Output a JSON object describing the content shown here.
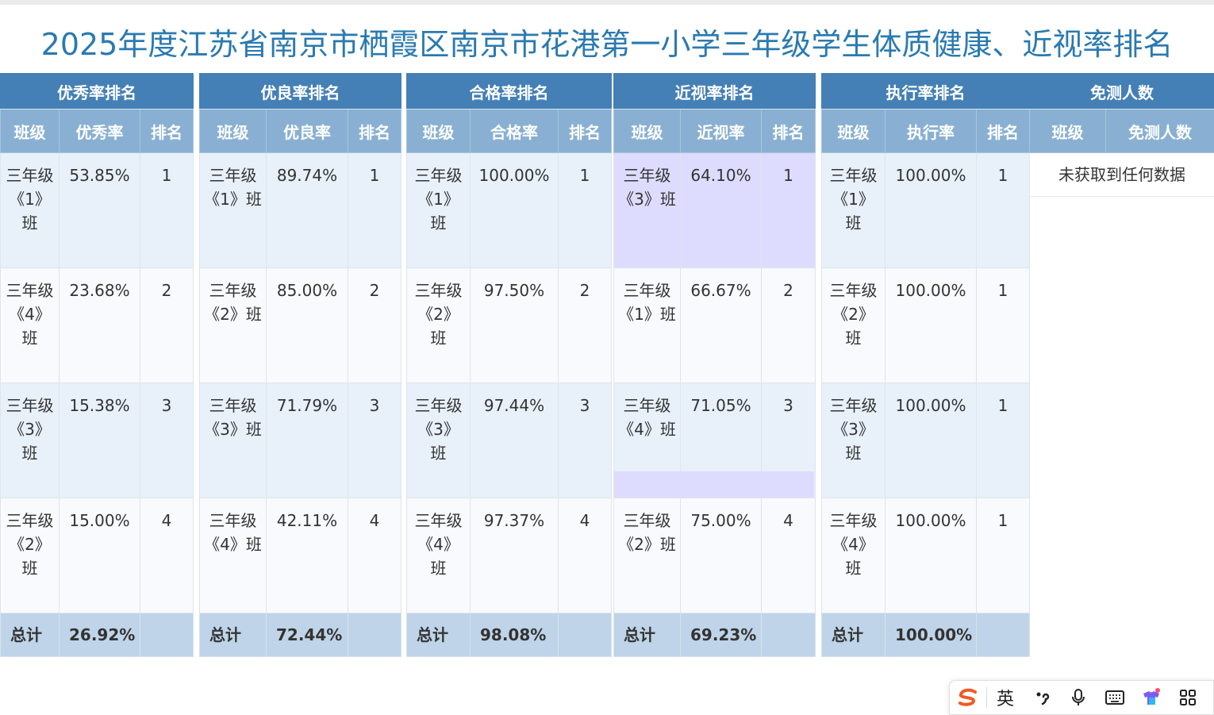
{
  "page_title": "2025年度江苏省南京市栖霞区南京市花港第一小学三年级学生体质健康、近视率排名",
  "col_class": "班级",
  "col_rank": "排名",
  "total_label": "总计",
  "panels": [
    {
      "title": "优秀率排名",
      "metric": "优秀率",
      "rows": [
        {
          "cls": "三年级《1》班",
          "rate": "53.85%",
          "rank": "1"
        },
        {
          "cls": "三年级《4》班",
          "rate": "23.68%",
          "rank": "2"
        },
        {
          "cls": "三年级《3》班",
          "rate": "15.38%",
          "rank": "3"
        },
        {
          "cls": "三年级《2》班",
          "rate": "15.00%",
          "rank": "4"
        }
      ],
      "total": "26.92%"
    },
    {
      "title": "优良率排名",
      "metric": "优良率",
      "rows": [
        {
          "cls": "三年级《1》班",
          "rate": "89.74%",
          "rank": "1"
        },
        {
          "cls": "三年级《2》班",
          "rate": "85.00%",
          "rank": "2"
        },
        {
          "cls": "三年级《3》班",
          "rate": "71.79%",
          "rank": "3"
        },
        {
          "cls": "三年级《4》班",
          "rate": "42.11%",
          "rank": "4"
        }
      ],
      "total": "72.44%"
    },
    {
      "title": "合格率排名",
      "metric": "合格率",
      "rows": [
        {
          "cls": "三年级《1》班",
          "rate": "100.00%",
          "rank": "1"
        },
        {
          "cls": "三年级《2》班",
          "rate": "97.50%",
          "rank": "2"
        },
        {
          "cls": "三年级《3》班",
          "rate": "97.44%",
          "rank": "3"
        },
        {
          "cls": "三年级《4》班",
          "rate": "97.37%",
          "rank": "4"
        }
      ],
      "total": "98.08%"
    },
    {
      "title": "近视率排名",
      "metric": "近视率",
      "rows": [
        {
          "cls": "三年级《3》班",
          "rate": "64.10%",
          "rank": "1"
        },
        {
          "cls": "三年级《1》班",
          "rate": "66.67%",
          "rank": "2"
        },
        {
          "cls": "三年级《4》班",
          "rate": "71.05%",
          "rank": "3"
        },
        {
          "cls": "三年级《2》班",
          "rate": "75.00%",
          "rank": "4"
        }
      ],
      "total": "69.23%"
    },
    {
      "title": "执行率排名",
      "metric": "执行率",
      "rows": [
        {
          "cls": "三年级《1》班",
          "rate": "100.00%",
          "rank": "1"
        },
        {
          "cls": "三年级《2》班",
          "rate": "100.00%",
          "rank": "1"
        },
        {
          "cls": "三年级《3》班",
          "rate": "100.00%",
          "rank": "1"
        },
        {
          "cls": "三年级《4》班",
          "rate": "100.00%",
          "rank": "1"
        }
      ],
      "total": "100.00%"
    }
  ],
  "exempt": {
    "title": "免测人数",
    "col_class": "班级",
    "col_count": "免测人数",
    "empty_text": "未获取到任何数据"
  },
  "ime_toolbar": {
    "lang_label": "英",
    "icons": [
      "sogou-logo-icon",
      "punctuation-icon",
      "microphone-icon",
      "keyboard-icon",
      "skin-icon",
      "apps-grid-icon"
    ]
  }
}
